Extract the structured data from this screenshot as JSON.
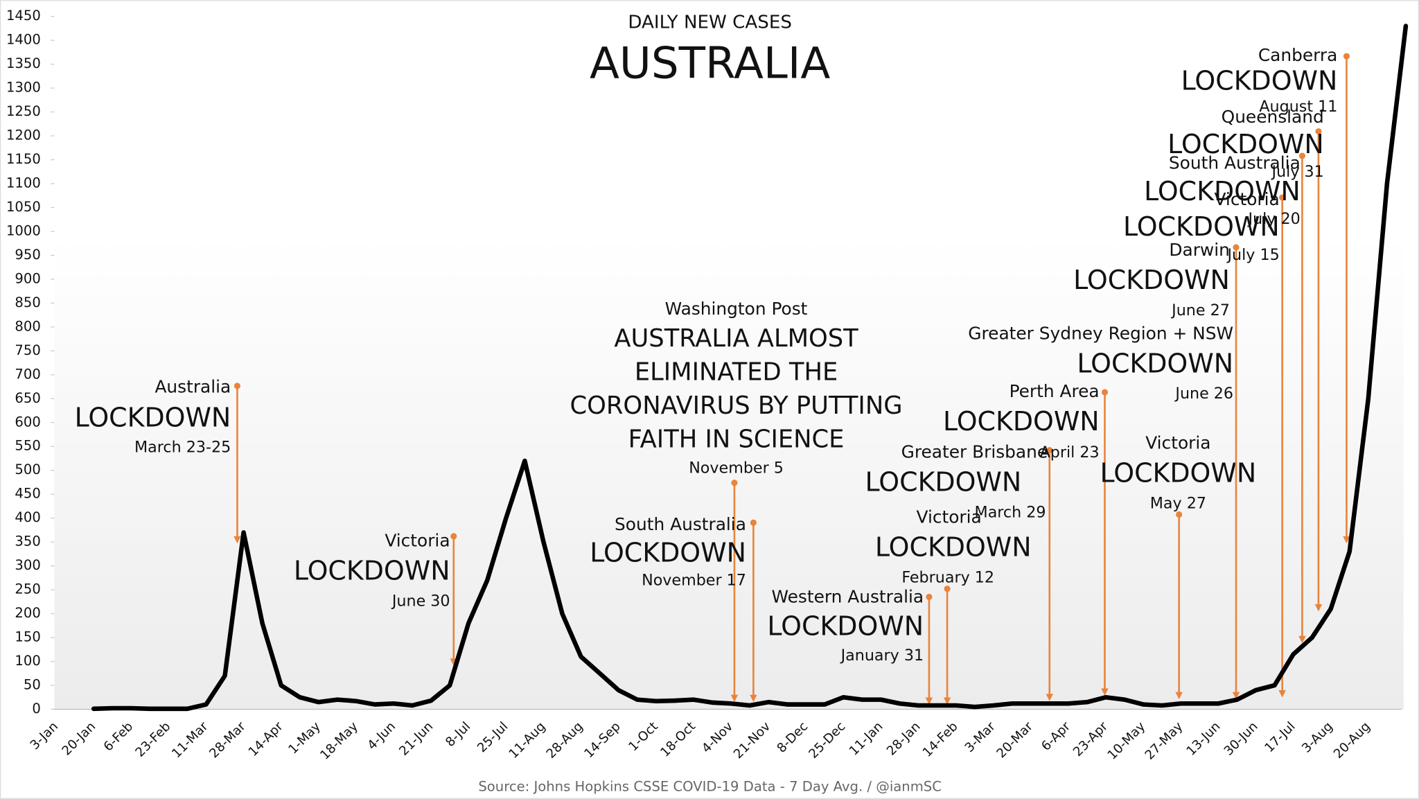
{
  "chart_data": {
    "type": "line",
    "subtitle": "DAILY NEW CASES",
    "title": "AUSTRALIA",
    "source": "Source: Johns Hopkins CSSE COVID-19 Data - 7 Day Avg. / @ianmSC",
    "ylim": [
      0,
      1450
    ],
    "yticks": [
      0,
      50,
      100,
      150,
      200,
      250,
      300,
      350,
      400,
      450,
      500,
      550,
      600,
      650,
      700,
      750,
      800,
      850,
      900,
      950,
      1000,
      1050,
      1100,
      1150,
      1200,
      1250,
      1300,
      1350,
      1400,
      1450
    ],
    "categories": [
      "3-Jan",
      null,
      "20-Jan",
      null,
      "6-Feb",
      null,
      "23-Feb",
      null,
      "11-Mar",
      null,
      "28-Mar",
      null,
      "14-Apr",
      null,
      "1-May",
      null,
      "18-May",
      null,
      "4-Jun",
      null,
      "21-Jun",
      null,
      "8-Jul",
      null,
      "25-Jul",
      null,
      "11-Aug",
      null,
      "28-Aug",
      null,
      "14-Sep",
      null,
      "1-Oct",
      null,
      "18-Oct",
      null,
      "4-Nov",
      null,
      "21-Nov",
      null,
      "8-Dec",
      null,
      "25-Dec",
      null,
      "11-Jan",
      null,
      "28-Jan",
      null,
      "14-Feb",
      null,
      "3-Mar",
      null,
      "20-Mar",
      null,
      "6-Apr",
      null,
      "23-Apr",
      null,
      "10-May",
      null,
      "27-May",
      null,
      "13-Jun",
      null,
      "30-Jun",
      null,
      "17-Jul",
      null,
      "3-Aug",
      null,
      "20-Aug",
      null,
      null
    ],
    "values": [
      null,
      null,
      1,
      2,
      2,
      1,
      1,
      1,
      10,
      70,
      370,
      180,
      50,
      25,
      15,
      20,
      17,
      10,
      12,
      8,
      18,
      50,
      180,
      270,
      400,
      520,
      350,
      200,
      110,
      75,
      40,
      20,
      17,
      18,
      20,
      14,
      12,
      8,
      15,
      10,
      10,
      10,
      25,
      20,
      20,
      12,
      8,
      8,
      8,
      5,
      8,
      12,
      12,
      12,
      12,
      15,
      25,
      20,
      10,
      8,
      12,
      12,
      12,
      20,
      40,
      50,
      115,
      150,
      210,
      330,
      650,
      1100,
      1430
    ],
    "color": "#000000",
    "annotation_color": "#e8843c",
    "annotations": [
      {
        "text": [
          "Australia",
          "LOCKDOWN",
          "March 23-25"
        ]
      },
      {
        "text": [
          "Victoria",
          "LOCKDOWN",
          "June 30"
        ]
      },
      {
        "text": [
          "Washington Post",
          "AUSTRALIA ALMOST",
          "ELIMINATED THE",
          "CORONAVIRUS BY PUTTING",
          "FAITH IN SCIENCE",
          "November 5"
        ]
      },
      {
        "text": [
          "South Australia",
          "LOCKDOWN",
          "November 17"
        ]
      },
      {
        "text": [
          "Western Australia",
          "LOCKDOWN",
          "January 31"
        ]
      },
      {
        "text": [
          "Victoria",
          "LOCKDOWN",
          "February 12"
        ]
      },
      {
        "text": [
          "Greater Brisbane",
          "LOCKDOWN",
          "March 29"
        ]
      },
      {
        "text": [
          "Perth Area",
          "LOCKDOWN",
          "April 23"
        ]
      },
      {
        "text": [
          "Victoria",
          "LOCKDOWN",
          "May 27"
        ]
      },
      {
        "text": [
          "Greater Sydney Region + NSW",
          "LOCKDOWN",
          "June 26"
        ]
      },
      {
        "text": [
          "Darwin",
          "LOCKDOWN",
          "June 27"
        ]
      },
      {
        "text": [
          "Victoria",
          "LOCKDOWN",
          "July 15"
        ]
      },
      {
        "text": [
          "South Australia",
          "LOCKDOWN",
          "July 20"
        ]
      },
      {
        "text": [
          "Queensland",
          "LOCKDOWN",
          "July 31"
        ]
      },
      {
        "text": [
          "Canberra",
          "LOCKDOWN",
          "August 11"
        ]
      }
    ]
  }
}
